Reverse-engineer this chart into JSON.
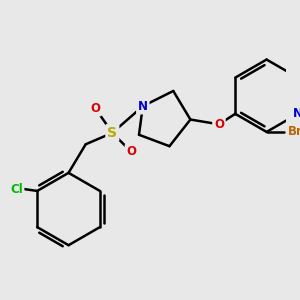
{
  "bg_color": "#e8e8e8",
  "bond_color": "#000000",
  "bond_width": 1.8,
  "atom_colors": {
    "N_pyridine": "#0000cc",
    "N_pyrrolidine": "#0000cc",
    "O": "#dd0000",
    "S": "#bbaa00",
    "Cl": "#00bb00",
    "Br": "#bb6600",
    "C": "#000000"
  },
  "fs": 8.5
}
